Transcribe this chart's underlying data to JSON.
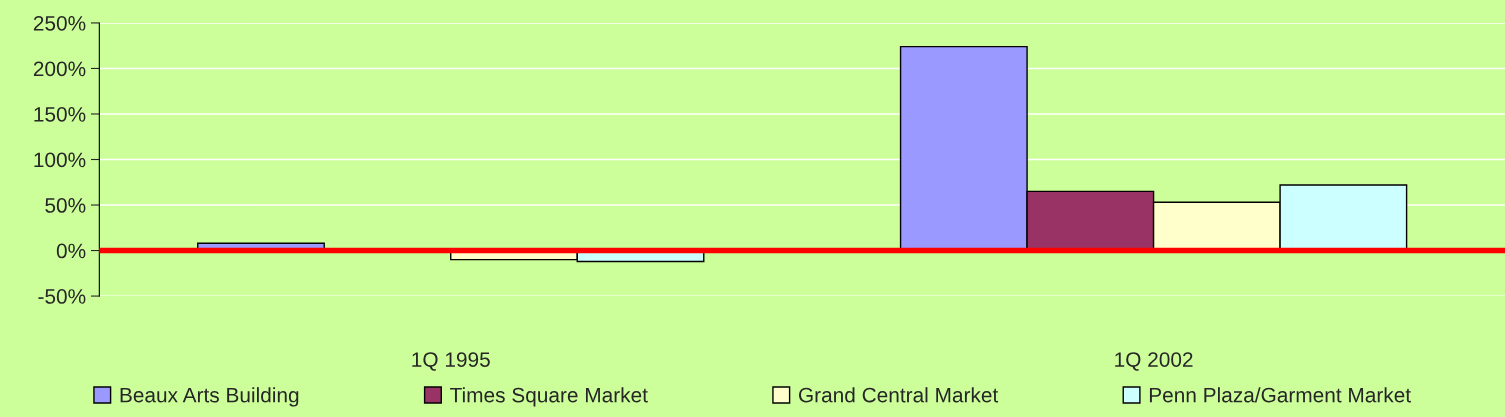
{
  "chart_data": {
    "type": "bar",
    "categories": [
      "1Q 1995",
      "1Q 2002"
    ],
    "series": [
      {
        "name": "Beaux Arts Building",
        "color": "#9999ff",
        "values": [
          8,
          224
        ]
      },
      {
        "name": "Times Square Market",
        "color": "#993366",
        "values": [
          null,
          65
        ]
      },
      {
        "name": "Grand Central Market",
        "color": "#ffffcc",
        "values": [
          -10,
          53
        ]
      },
      {
        "name": "Penn Plaza/Garment Market",
        "color": "#ccffff",
        "values": [
          -12,
          72
        ]
      }
    ],
    "ylim": [
      -50,
      250
    ],
    "yticks": [
      {
        "value": -50,
        "label": "-50%"
      },
      {
        "value": 0,
        "label": "0%"
      },
      {
        "value": 50,
        "label": "50%"
      },
      {
        "value": 100,
        "label": "100%"
      },
      {
        "value": 150,
        "label": "150%"
      },
      {
        "value": 200,
        "label": "200%"
      },
      {
        "value": 250,
        "label": "250%"
      }
    ],
    "ref_lines": [
      {
        "axis": "y",
        "value": 0,
        "color": "#ff0000"
      }
    ],
    "grid": "y",
    "legend": "bottom"
  }
}
